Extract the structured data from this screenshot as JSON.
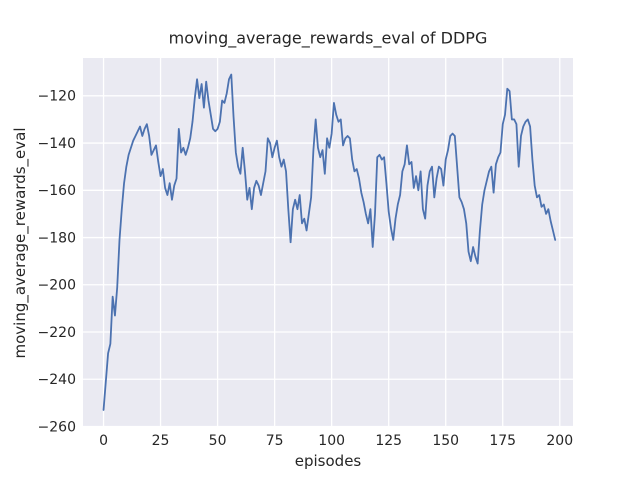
{
  "figure": {
    "background_color": "#ffffff",
    "style": "seaborn-darkgrid"
  },
  "chart_data": {
    "type": "line",
    "title": "moving_average_rewards_eval of DDPG",
    "xlabel": "episodes",
    "ylabel": "moving_average_rewards_eval",
    "xlim": [
      -9,
      205.8
    ],
    "ylim": [
      -260.2,
      -104
    ],
    "x_ticks": [
      0,
      25,
      50,
      75,
      100,
      125,
      150,
      175,
      200
    ],
    "y_ticks": [
      -260,
      -240,
      -220,
      -200,
      -180,
      -160,
      -140,
      -120
    ],
    "grid": true,
    "legend_position": "none",
    "plot_bg_color": "#EAEAF2",
    "grid_color": "#FFFFFF",
    "text_color": "#262626",
    "series": [
      {
        "name": "moving_average_rewards_eval",
        "color": "#4C72B0",
        "line_width": 1.8,
        "x_start": 0,
        "x_step": 1,
        "values": [
          -253,
          -241,
          -229,
          -225,
          -205,
          -213,
          -201,
          -181,
          -168,
          -157,
          -150,
          -145,
          -142,
          -139,
          -137,
          -135,
          -133,
          -137,
          -134,
          -132,
          -137,
          -145,
          -143,
          -141,
          -148,
          -154,
          -151,
          -159,
          -162,
          -157,
          -164,
          -158,
          -155,
          -134,
          -144,
          -142,
          -145,
          -142,
          -138,
          -131,
          -121,
          -113,
          -121,
          -115,
          -125,
          -114,
          -122,
          -128,
          -134,
          -135,
          -134,
          -131,
          -122,
          -123,
          -119,
          -113,
          -111,
          -129,
          -144,
          -150,
          -153,
          -142,
          -152,
          -164,
          -159,
          -168,
          -159,
          -156,
          -158,
          -162,
          -157,
          -152,
          -138,
          -140,
          -146,
          -142,
          -139,
          -146,
          -150,
          -147,
          -152,
          -168,
          -182,
          -168,
          -164,
          -168,
          -162,
          -174,
          -172,
          -177,
          -170,
          -163,
          -143,
          -130,
          -142,
          -146,
          -143,
          -153,
          -138,
          -142,
          -136,
          -123,
          -128,
          -131,
          -130,
          -141,
          -138,
          -137,
          -138,
          -147,
          -152,
          -151,
          -155,
          -161,
          -165,
          -170,
          -174,
          -168,
          -184,
          -170,
          -146,
          -145,
          -147,
          -146,
          -157,
          -169,
          -176,
          -181,
          -172,
          -166,
          -162,
          -152,
          -149,
          -141,
          -149,
          -148,
          -159,
          -154,
          -160,
          -152,
          -168,
          -172,
          -158,
          -152,
          -150,
          -163,
          -155,
          -150,
          -151,
          -158,
          -147,
          -143,
          -137,
          -136,
          -137,
          -150,
          -163,
          -165,
          -168,
          -174,
          -186,
          -190,
          -184,
          -188,
          -191,
          -177,
          -166,
          -160,
          -156,
          -152,
          -150,
          -161,
          -149,
          -146,
          -144,
          -132,
          -128,
          -117,
          -118,
          -130,
          -130,
          -132,
          -150,
          -137,
          -133,
          -131,
          -130,
          -133,
          -147,
          -158,
          -163,
          -162,
          -167,
          -166,
          -170,
          -168,
          -173,
          -177,
          -181
        ]
      }
    ]
  }
}
